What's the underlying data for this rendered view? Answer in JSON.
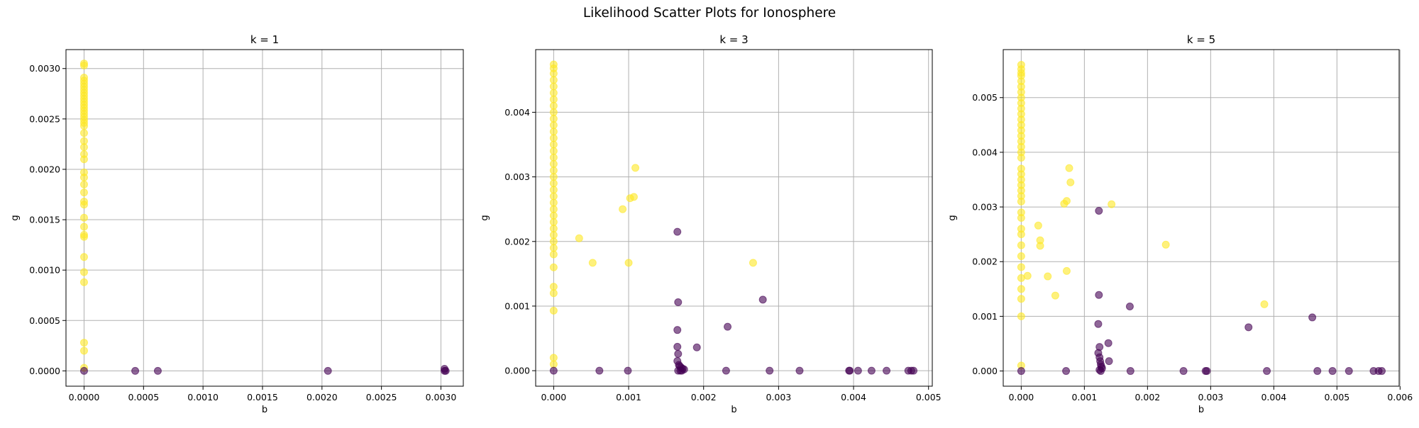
{
  "figure": {
    "suptitle": "Likelihood Scatter Plots for Ionosphere"
  },
  "colors": {
    "class_g": "#fde725",
    "class_b": "#440154",
    "grid": "#b0b0b0",
    "axes": "#000000"
  },
  "chart_data": [
    {
      "type": "scatter",
      "title": "k = 1",
      "xlabel": "b",
      "ylabel": "g",
      "xlim": [
        -0.000152,
        0.003188
      ],
      "ylim": [
        -0.000152,
        0.003188
      ],
      "xticks": [
        "0.0000",
        "0.0005",
        "0.0010",
        "0.0015",
        "0.0020",
        "0.0025",
        "0.0030"
      ],
      "xtick_values": [
        0,
        0.0005,
        0.001,
        0.0015,
        0.002,
        0.0025,
        0.003
      ],
      "yticks": [
        "0.0000",
        "0.0005",
        "0.0010",
        "0.0015",
        "0.0020",
        "0.0025",
        "0.0030"
      ],
      "ytick_values": [
        0,
        0.0005,
        0.001,
        0.0015,
        0.002,
        0.0025,
        0.003
      ],
      "grid": true,
      "series": [
        {
          "color": "#fde725",
          "x": [
            0,
            0,
            0,
            0,
            0,
            0,
            0,
            0,
            0,
            0,
            0,
            0,
            0,
            0,
            0,
            0,
            0,
            0,
            0,
            0,
            0,
            0,
            0,
            0,
            0,
            0,
            0,
            0,
            0,
            0,
            0,
            0,
            0,
            0,
            0,
            0,
            0,
            0,
            0,
            0
          ],
          "y": [
            0.00305,
            0.00303,
            0.00291,
            0.00288,
            0.00285,
            0.00282,
            0.00279,
            0.00276,
            0.00273,
            0.0027,
            0.00267,
            0.00264,
            0.00261,
            0.00258,
            0.00255,
            0.00252,
            0.00249,
            0.00246,
            0.00243,
            0.00236,
            0.00228,
            0.00222,
            0.00215,
            0.0021,
            0.00197,
            0.00192,
            0.00185,
            0.00177,
            0.00168,
            0.00165,
            0.00152,
            0.00143,
            0.00135,
            0.00133,
            0.00113,
            0.00098,
            0.00088,
            0.00028,
            0.0002,
            3e-05
          ]
        },
        {
          "color": "#440154",
          "x": [
            0,
            0.00043,
            0.00062,
            0.00205,
            0.00303,
            0.00304,
            0.00303
          ],
          "y": [
            0,
            0,
            0,
            0,
            0,
            0,
            2e-05
          ]
        }
      ]
    },
    {
      "type": "scatter",
      "title": "k = 3",
      "xlabel": "b",
      "ylabel": "g",
      "xlim": [
        -0.00024,
        0.00505
      ],
      "ylim": [
        -0.00024,
        0.00497
      ],
      "xticks": [
        "0.000",
        "0.001",
        "0.002",
        "0.003",
        "0.004",
        "0.005"
      ],
      "xtick_values": [
        0,
        0.001,
        0.002,
        0.003,
        0.004,
        0.005
      ],
      "yticks": [
        "0.000",
        "0.001",
        "0.002",
        "0.003",
        "0.004"
      ],
      "ytick_values": [
        0,
        0.001,
        0.002,
        0.003,
        0.004
      ],
      "grid": true,
      "series": [
        {
          "color": "#fde725",
          "x": [
            0,
            0,
            0,
            0,
            0,
            0,
            0,
            0,
            0,
            0,
            0,
            0,
            0,
            0,
            0,
            0,
            0,
            0,
            0,
            0,
            0,
            0,
            0,
            0,
            0,
            0,
            0,
            0,
            0,
            0,
            0,
            0,
            0,
            0,
            0,
            0,
            0,
            0.00034,
            0.00052,
            0.00092,
            0.001,
            0.00102,
            0.00107,
            0.00109,
            0.00266
          ],
          "y": [
            0.00474,
            0.00468,
            0.0046,
            0.0045,
            0.0044,
            0.0043,
            0.0042,
            0.0041,
            0.004,
            0.0039,
            0.0038,
            0.0037,
            0.0036,
            0.0035,
            0.0034,
            0.0033,
            0.0032,
            0.0031,
            0.003,
            0.0029,
            0.0028,
            0.0027,
            0.0026,
            0.0025,
            0.0024,
            0.0023,
            0.0022,
            0.0021,
            0.002,
            0.0019,
            0.0018,
            0.0016,
            0.0013,
            0.0012,
            0.00093,
            0.0002,
            0.0001,
            0.00205,
            0.00167,
            0.0025,
            0.00167,
            0.00267,
            0.00269,
            0.00314,
            0.00167
          ]
        },
        {
          "color": "#440154",
          "x": [
            0,
            0.00061,
            0.00099,
            0.00165,
            0.00166,
            0.00165,
            0.00165,
            0.00166,
            0.00165,
            0.00167,
            0.00168,
            0.0017,
            0.00172,
            0.00174,
            0.00166,
            0.00169,
            0.00171,
            0.00191,
            0.00232,
            0.0023,
            0.00279,
            0.00288,
            0.00328,
            0.00394,
            0.00395,
            0.00406,
            0.00424,
            0.00444,
            0.00473,
            0.00477,
            0.0048
          ],
          "y": [
            0,
            0,
            0,
            0.00215,
            0.00106,
            0.00063,
            0.00037,
            0.00026,
            0.00015,
            9e-05,
            7e-05,
            5e-05,
            3e-05,
            2e-05,
            0,
            0,
            0,
            0.00036,
            0.00068,
            0,
            0.0011,
            0,
            0,
            0,
            0,
            0,
            0,
            0,
            0,
            0,
            0
          ]
        }
      ]
    },
    {
      "type": "scatter",
      "title": "k = 5",
      "xlabel": "b",
      "ylabel": "g",
      "xlim": [
        -0.000285,
        0.005985
      ],
      "ylim": [
        -0.000278,
        0.005878
      ],
      "xticks": [
        "0.000",
        "0.001",
        "0.002",
        "0.003",
        "0.004",
        "0.005",
        "0.006"
      ],
      "xtick_values": [
        0,
        0.001,
        0.002,
        0.003,
        0.004,
        0.005,
        0.006
      ],
      "yticks": [
        "0.000",
        "0.001",
        "0.002",
        "0.003",
        "0.004",
        "0.005"
      ],
      "ytick_values": [
        0,
        0.001,
        0.002,
        0.003,
        0.004,
        0.005
      ],
      "grid": true,
      "series": [
        {
          "color": "#fde725",
          "x": [
            0,
            0,
            0,
            0,
            0,
            0,
            0,
            0,
            0,
            0,
            0,
            0,
            0,
            0,
            0,
            0,
            0,
            0,
            0,
            0,
            0,
            0,
            0,
            0,
            0,
            0,
            0,
            0,
            0,
            0,
            0,
            0,
            0,
            0,
            0,
            0,
            0,
            0,
            0.0001,
            0.00027,
            0.0003,
            0.0003,
            0.00042,
            0.00054,
            0.00068,
            0.00072,
            0.00072,
            0.00076,
            0.00078,
            0.00143,
            0.00229,
            0.00385
          ],
          "y": [
            0.0056,
            0.00552,
            0.00545,
            0.0054,
            0.0053,
            0.0052,
            0.0051,
            0.005,
            0.0049,
            0.0048,
            0.0047,
            0.0046,
            0.0045,
            0.0044,
            0.0043,
            0.0042,
            0.0041,
            0.004,
            0.0039,
            0.0037,
            0.0036,
            0.0035,
            0.0034,
            0.0033,
            0.0032,
            0.0031,
            0.0029,
            0.0028,
            0.0026,
            0.0025,
            0.0023,
            0.0021,
            0.0019,
            0.0017,
            0.0015,
            0.00132,
            0.001,
            0.0001,
            0.00174,
            0.00266,
            0.00239,
            0.00229,
            0.00173,
            0.00138,
            0.00306,
            0.00311,
            0.00183,
            0.00371,
            0.00345,
            0.00305,
            0.00231,
            0.00122
          ]
        },
        {
          "color": "#440154",
          "x": [
            0,
            0.00071,
            0.00123,
            0.00123,
            0.00122,
            0.00124,
            0.00122,
            0.00124,
            0.00125,
            0.00126,
            0.00127,
            0.00128,
            0.00124,
            0.00126,
            0.00138,
            0.00139,
            0.00172,
            0.00173,
            0.00257,
            0.00292,
            0.00294,
            0.0036,
            0.00389,
            0.00461,
            0.00469,
            0.00493,
            0.00519,
            0.00558,
            0.00566,
            0.00571
          ],
          "y": [
            0,
            0,
            0.00293,
            0.00139,
            0.00086,
            0.00044,
            0.00033,
            0.00025,
            0.00018,
            0.00012,
            8e-05,
            5e-05,
            2e-05,
            0,
            0.00051,
            0.00018,
            0.00118,
            0,
            0,
            0,
            0,
            0.0008,
            0,
            0.00098,
            0,
            0,
            0,
            0,
            0,
            0
          ]
        }
      ]
    }
  ]
}
